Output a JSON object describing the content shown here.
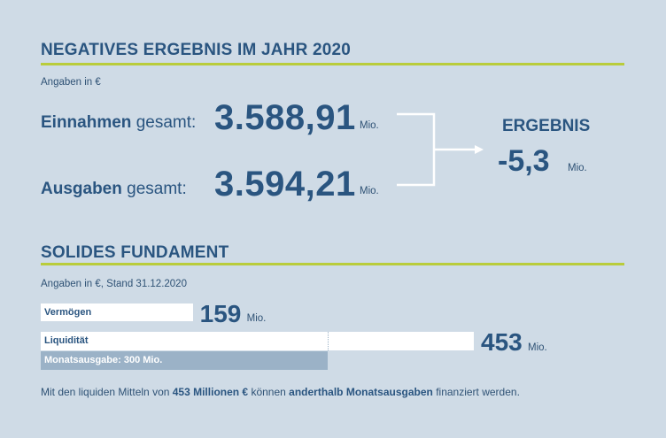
{
  "chart_data": [
    {
      "type": "table",
      "title": "NEGATIVES ERGEBNIS IM JAHR 2020",
      "subtitle": "Angaben in €",
      "rows": [
        {
          "label_bold": "Einnahmen",
          "label_rest": "gesamt:",
          "value": "3.588,91",
          "unit": "Mio."
        },
        {
          "label_bold": "Ausgaben",
          "label_rest": "gesamt:",
          "value": "3.594,21",
          "unit": "Mio."
        }
      ],
      "result": {
        "label": "ERGEBNIS",
        "value": "-5,3",
        "unit": "Mio."
      }
    },
    {
      "type": "bar",
      "title": "SOLIDES FUNDAMENT",
      "subtitle": "Angaben in €, Stand 31.12.2020",
      "categories": [
        "Vermögen",
        "Liquidität"
      ],
      "values": [
        159,
        453
      ],
      "value_labels": [
        "159",
        "453"
      ],
      "unit": "Mio.",
      "overlay": {
        "label": "Monatsausgabe: 300 Mio.",
        "value": 300
      }
    }
  ],
  "footer": {
    "t1": "Mit den liquiden Mitteln von ",
    "b1": "453 Millionen €",
    "t2": " können ",
    "b2": "anderthalb Monatsausgaben",
    "t3": " finanziert werden."
  },
  "colors": {
    "background": "#cfdbe6",
    "text": "#2a5580",
    "accent_rule": "#b9cc3b",
    "bar": "#ffffff",
    "overlay_bar": "#9bb2c7"
  }
}
